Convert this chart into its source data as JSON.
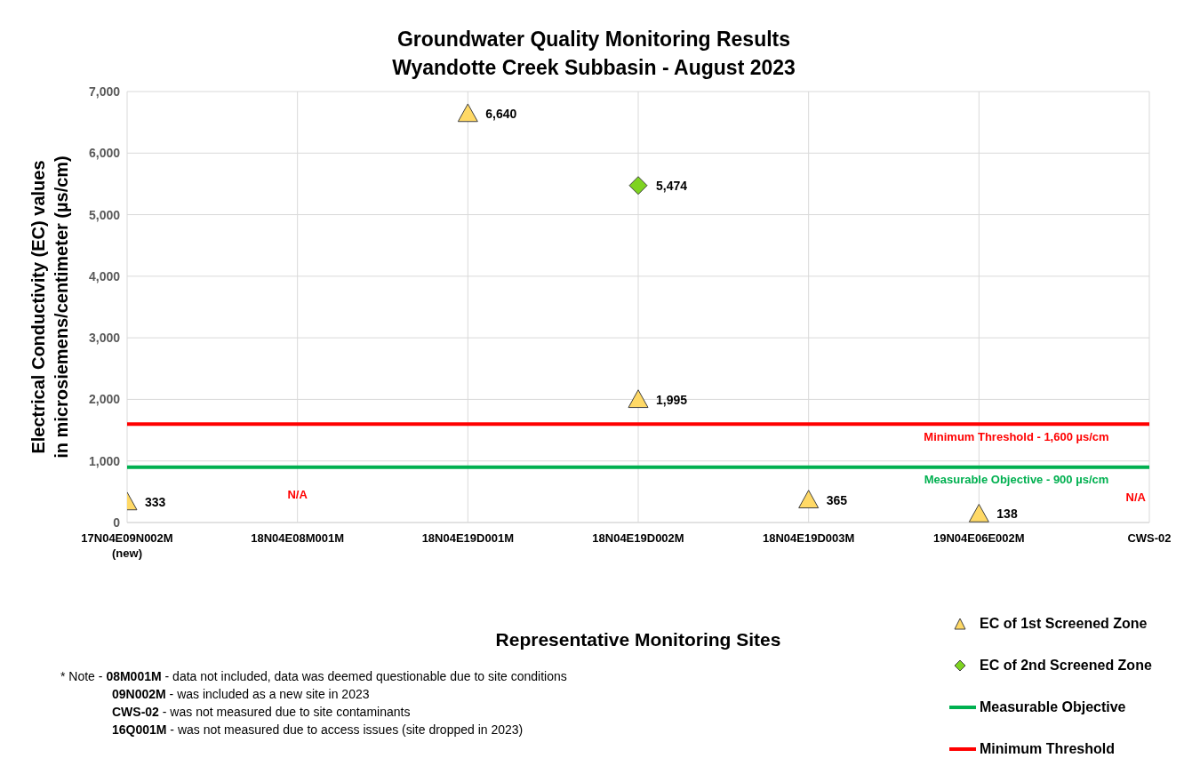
{
  "chart_data": {
    "type": "scatter",
    "title": "Groundwater Quality Monitoring Results\nWyandotte Creek Subbasin - August 2023",
    "xlabel": "Representative Monitoring Sites",
    "ylabel": "Electrical Conductivity (EC) values\nin microsiemens/centimeter (µs/cm)",
    "categories": [
      "17N04E09N002M\n(new)",
      "18N04E08M001M",
      "18N04E19D001M",
      "18N04E19D002M",
      "18N04E19D003M",
      "19N04E06E002M",
      "CWS-02"
    ],
    "series": [
      {
        "name": "EC of 1st Screened Zone",
        "marker": "triangle",
        "color": "#ffd966",
        "values": [
          333,
          null,
          6640,
          1995,
          365,
          138,
          null
        ],
        "value_labels": [
          "333",
          null,
          "6,640",
          "1,995",
          "365",
          "138",
          null
        ]
      },
      {
        "name": "EC of 2nd Screened Zone",
        "marker": "diamond",
        "color": "#7ed321",
        "values": [
          null,
          null,
          null,
          5474,
          null,
          null,
          null
        ],
        "value_labels": [
          null,
          null,
          null,
          "5,474",
          null,
          null,
          null
        ]
      },
      {
        "name": "Measurable Objective",
        "type": "line",
        "color": "#00b050",
        "values": [
          900,
          900,
          900,
          900,
          900,
          900,
          900
        ]
      },
      {
        "name": "Minimum Threshold",
        "type": "line",
        "color": "#ff0000",
        "values": [
          1600,
          1600,
          1600,
          1600,
          1600,
          1600,
          1600
        ]
      }
    ],
    "ylim": [
      0,
      7000
    ],
    "yticks": [
      {
        "value": 0,
        "label": "0"
      },
      {
        "value": 1000,
        "label": "1,000"
      },
      {
        "value": 2000,
        "label": "2,000"
      },
      {
        "value": 3000,
        "label": "3,000"
      },
      {
        "value": 4000,
        "label": "4,000"
      },
      {
        "value": 5000,
        "label": "5,000"
      },
      {
        "value": 6000,
        "label": "6,000"
      },
      {
        "value": 7000,
        "label": "7,000"
      }
    ],
    "grid": true,
    "legend": "bottom right",
    "annotations": [
      "N/A",
      "N/A",
      "Minimum Threshold - 1,600 µs/cm",
      "Measurable Objective - 900 µs/cm",
      "* Note - 08M001M - data not included, data was deemed questionable due to site conditions",
      "09N002M - was included as a new site in 2023",
      "CWS-02 - was not measured due to site contaminants",
      "16Q001M - was not measured due to access issues (site dropped in 2023)"
    ]
  }
}
